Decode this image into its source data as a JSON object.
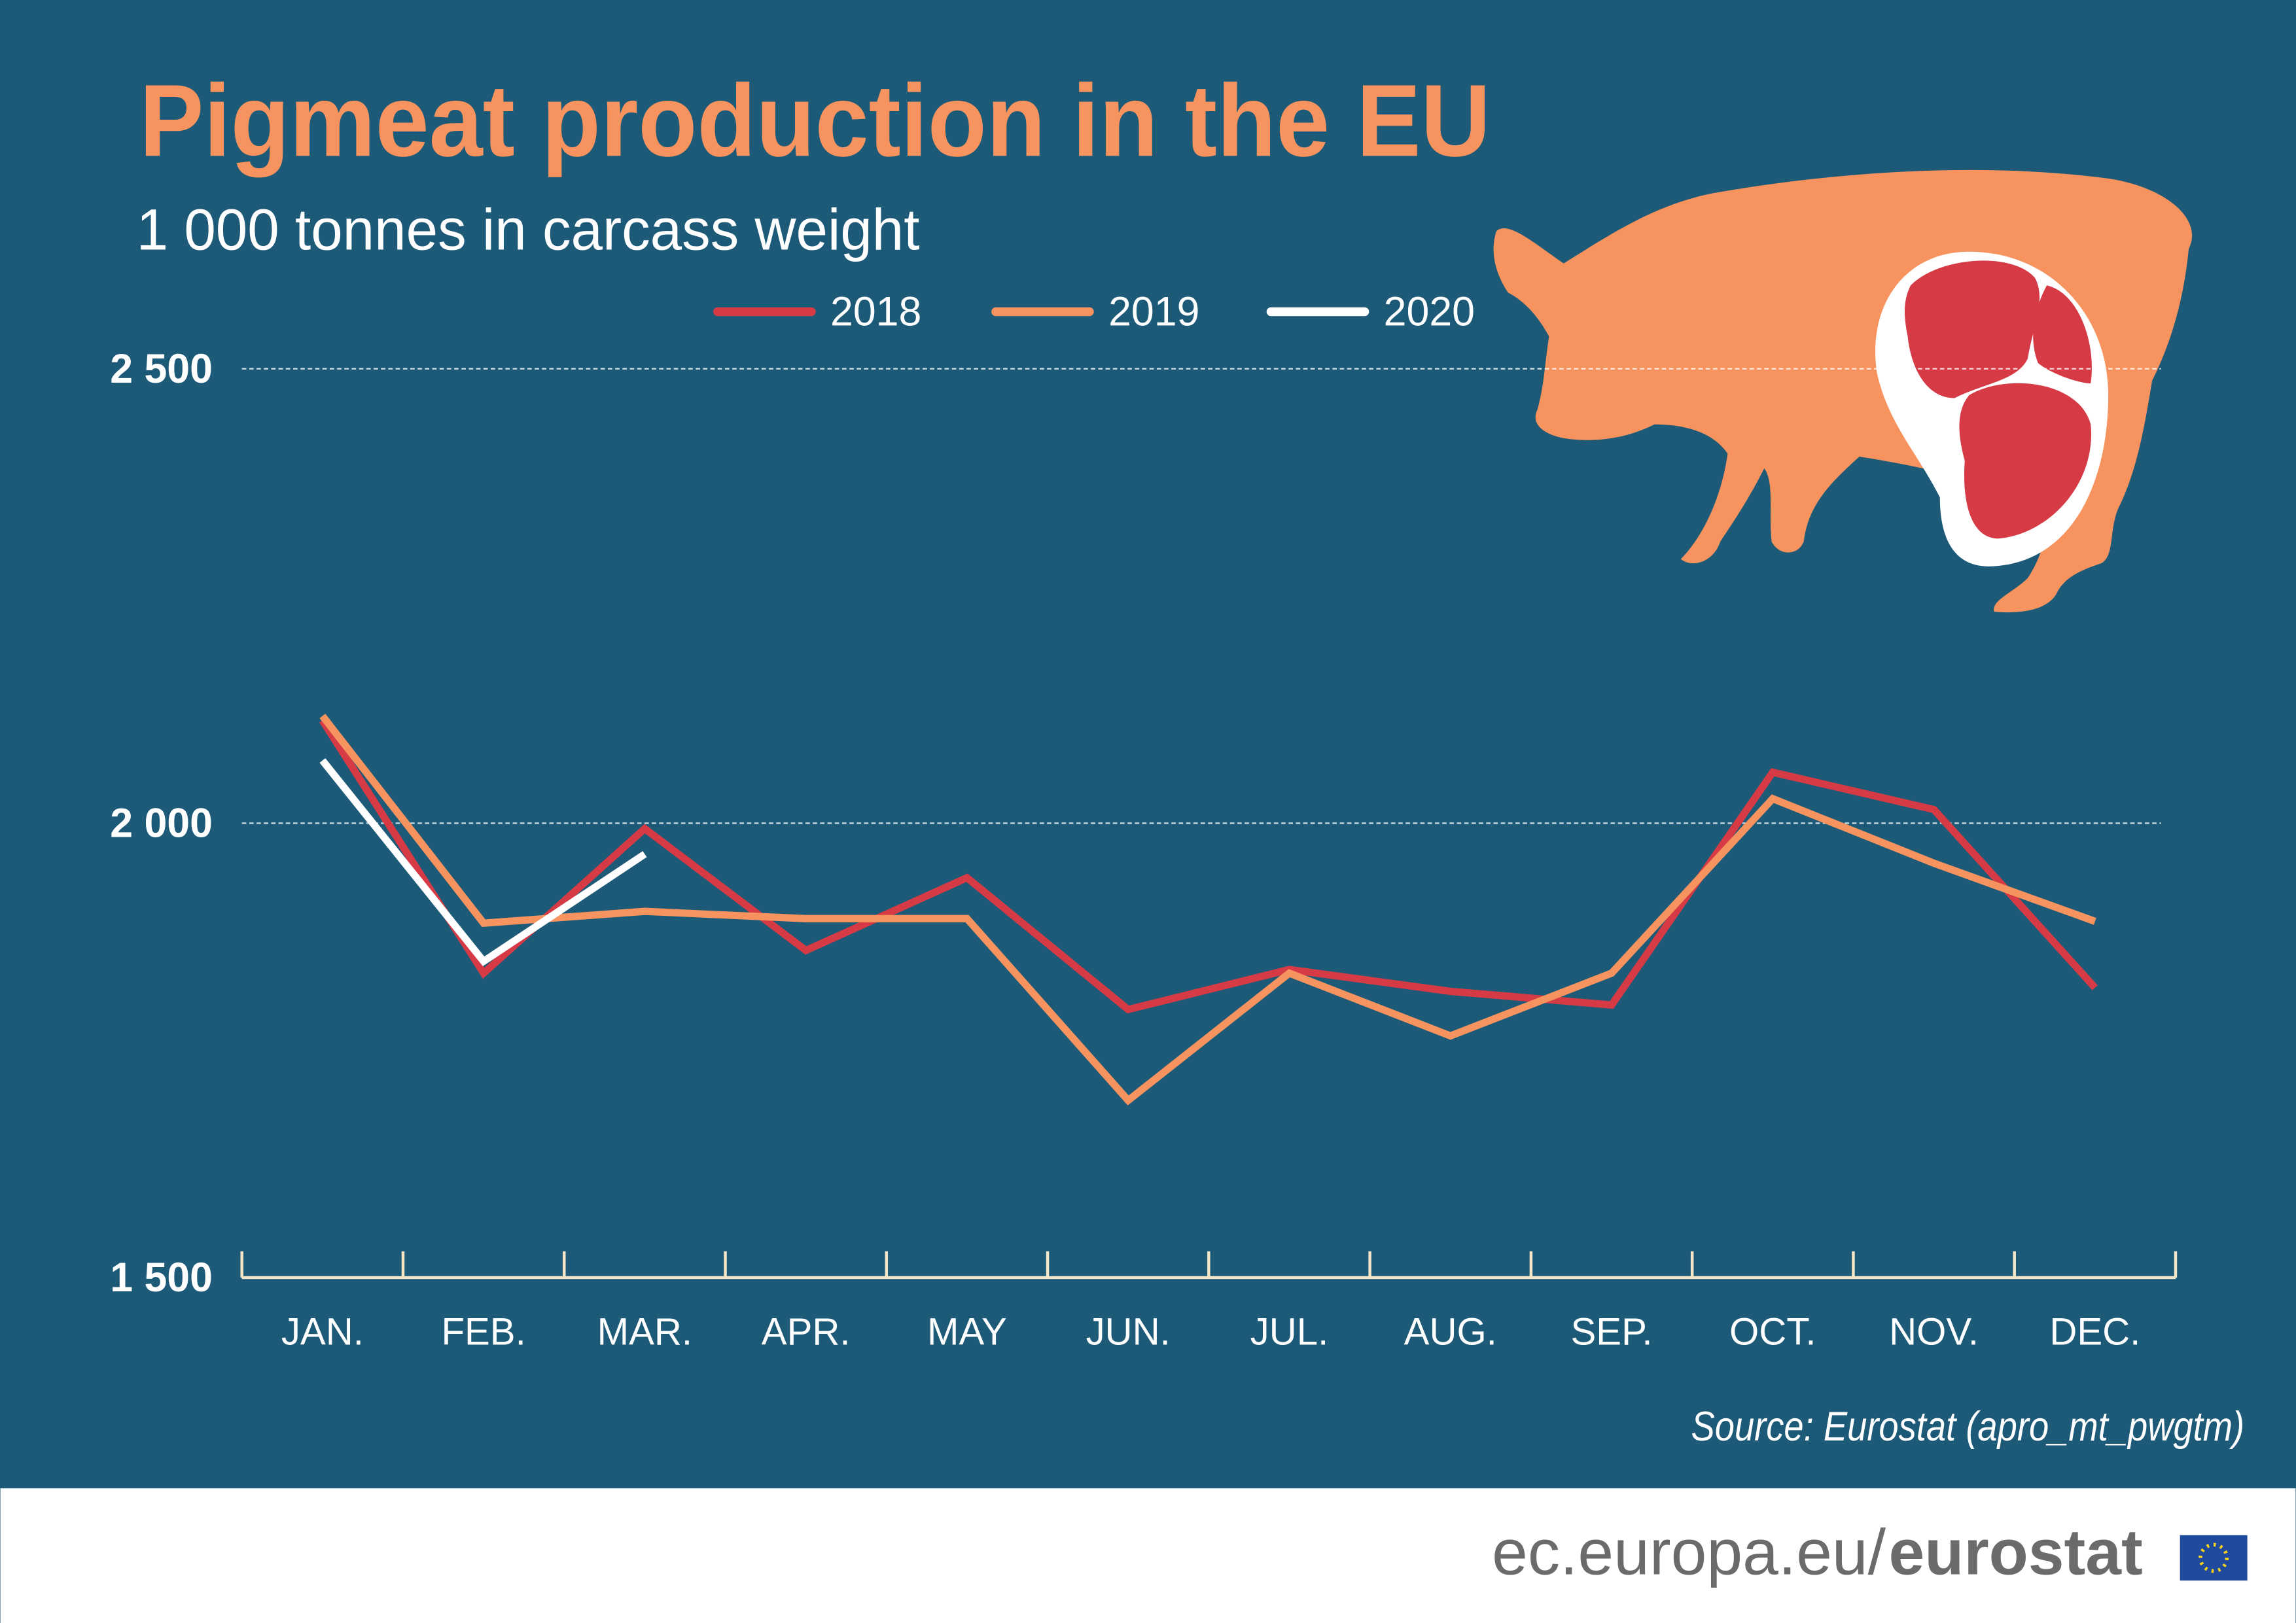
{
  "chart_data": {
    "type": "line",
    "title": "Pigmeat production in the EU",
    "subtitle": "1 000 tonnes in carcass weight",
    "source": "Source: Eurostat (apro_mt_pwgtm)",
    "categories": [
      "JAN.",
      "FEB.",
      "MAR.",
      "APR.",
      "MAY",
      "JUN.",
      "JUL.",
      "AUG.",
      "SEP.",
      "OCT.",
      "NOV.",
      "DEC."
    ],
    "series": [
      {
        "name": "2018",
        "color": "#d63a45",
        "values": [
          2113,
          1835,
          1994,
          1860,
          1940,
          1795,
          1839,
          1815,
          1800,
          2056,
          2015,
          1819
        ]
      },
      {
        "name": "2019",
        "color": "#f7935e",
        "values": [
          2118,
          1890,
          1903,
          1895,
          1895,
          1695,
          1835,
          1766,
          1835,
          2027,
          1956,
          1892
        ]
      },
      {
        "name": "2020",
        "color": "#ffffff",
        "values": [
          2069,
          1848,
          1966,
          null,
          null,
          null,
          null,
          null,
          null,
          null,
          null,
          null
        ]
      }
    ],
    "ylim": [
      1500,
      2500
    ],
    "yticks": [
      {
        "value": 1500,
        "label": "1 500"
      },
      {
        "value": 2000,
        "label": "2 000"
      },
      {
        "value": 2500,
        "label": "2 500"
      }
    ],
    "grid": true
  },
  "footer": {
    "site": "ec.europa.eu/",
    "brand": "eurostat"
  }
}
